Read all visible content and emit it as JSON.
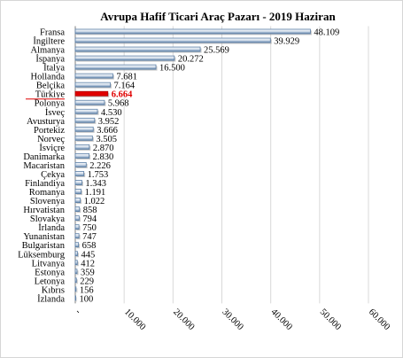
{
  "chart_data": {
    "type": "bar",
    "orientation": "horizontal",
    "title": "Avrupa  Hafif Ticari  Araç  Pazarı  - 2019 Haziran",
    "xlabel": "",
    "ylabel": "",
    "xlim": [
      0,
      60000
    ],
    "x_ticks": [
      "-",
      "10.000",
      "20.000",
      "30.000",
      "40.000",
      "50.000",
      "60.000"
    ],
    "x_tick_values": [
      0,
      10000,
      20000,
      30000,
      40000,
      50000,
      60000
    ],
    "grid": "vertical",
    "legend": "none",
    "bar_color": "#5a7ea6",
    "highlight_color": "#e00000",
    "highlight_category": "Türkiye",
    "categories": [
      "Fransa",
      "İngiltere",
      "Almanya",
      "İspanya",
      "İtalya",
      "Hollanda",
      "Belçika",
      "Türkiye",
      "Polonya",
      "İsveç",
      "Avusturya",
      "Portekiz",
      "Norveç",
      "İsviçre",
      "Danimarka",
      "Macaristan",
      "Çekya",
      "Finlandiya",
      "Romanya",
      "Slovenya",
      "Hırvatistan",
      "Slovakya",
      "İrlanda",
      "Yunanistan",
      "Bulgaristan",
      "Lüksemburg",
      "Litvanya",
      "Estonya",
      "Letonya",
      "Kıbrıs",
      "İzlanda"
    ],
    "values": [
      48109,
      39929,
      25569,
      20272,
      16500,
      7681,
      7164,
      6664,
      5968,
      4530,
      3952,
      3666,
      3505,
      2870,
      2830,
      2226,
      1753,
      1343,
      1191,
      1022,
      858,
      794,
      750,
      747,
      658,
      445,
      412,
      359,
      229,
      156,
      100
    ],
    "value_labels": [
      "48.109",
      "39.929",
      "25.569",
      "20.272",
      "16.500",
      "7.681",
      "7.164",
      "6.664",
      "5.968",
      "4.530",
      "3.952",
      "3.666",
      "3.505",
      "2.870",
      "2.830",
      "2.226",
      "1.753",
      "1.343",
      "1.191",
      "1.022",
      "858",
      "794",
      "750",
      "747",
      "658",
      "445",
      "412",
      "359",
      "229",
      "156",
      "100"
    ]
  }
}
